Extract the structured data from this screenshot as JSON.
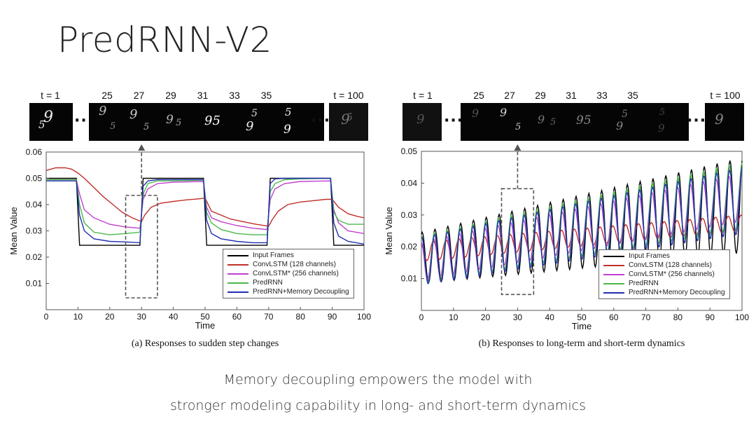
{
  "slide": {
    "title": "PredRNN-V2",
    "footer_line1": "Memory decoupling empowers the model with",
    "footer_line2": "stronger modeling capability in long- and short-term dynamics"
  },
  "colors": {
    "input_frames": "#000000",
    "convlstm": "#c0302a",
    "convlstm_star": "#c040d0",
    "predrnn": "#4ab84a",
    "predrnn_md": "#2030b0"
  },
  "frames_a": {
    "first_label": "t = 1",
    "last_label": "t = 100",
    "labels": [
      "25",
      "27",
      "29",
      "31",
      "33",
      "35"
    ],
    "dots": "···"
  },
  "frames_b": {
    "first_label": "t = 1",
    "last_label": "t = 100",
    "labels": [
      "25",
      "27",
      "29",
      "31",
      "33",
      "35"
    ],
    "dots": "···"
  },
  "chart_data": [
    {
      "type": "line",
      "caption": "(a) Responses to sudden step changes",
      "xlabel": "Time",
      "ylabel": "Mean Value",
      "xlim": [
        0,
        100
      ],
      "ylim": [
        0,
        0.06
      ],
      "xticks": [
        0,
        10,
        20,
        30,
        40,
        50,
        60,
        70,
        80,
        90,
        100
      ],
      "yticks": [
        0.01,
        0.02,
        0.03,
        0.04,
        0.05,
        0.06
      ],
      "ytick_labels": [
        "0.01",
        "0.02",
        "0.03",
        "0.04",
        "0.05",
        "0.06"
      ],
      "grid": false,
      "legend_position": "bottom-right",
      "highlight_range": [
        25,
        35
      ],
      "series": [
        {
          "name": "Input Frames",
          "key": "input_frames",
          "x": [
            0,
            9.5,
            10.5,
            29.5,
            30.5,
            49.5,
            50.5,
            69.5,
            70.5,
            89.5,
            90.5,
            100
          ],
          "y": [
            0.05,
            0.05,
            0.0245,
            0.0245,
            0.05,
            0.05,
            0.0245,
            0.0245,
            0.05,
            0.05,
            0.0245,
            0.0245
          ]
        },
        {
          "name": "ConvLSTM (128 channels)",
          "key": "convlstm",
          "x": [
            0,
            3,
            6,
            8,
            10,
            12,
            15,
            18,
            21,
            24,
            27,
            30,
            31,
            33,
            36,
            40,
            44,
            48,
            50,
            52,
            55,
            58,
            62,
            66,
            70,
            71,
            73,
            76,
            80,
            84,
            88,
            90,
            92,
            95,
            98,
            100
          ],
          "y": [
            0.053,
            0.054,
            0.054,
            0.0535,
            0.052,
            0.05,
            0.0465,
            0.043,
            0.04,
            0.037,
            0.035,
            0.0335,
            0.036,
            0.039,
            0.0405,
            0.0412,
            0.0418,
            0.0422,
            0.0425,
            0.0375,
            0.036,
            0.0345,
            0.0335,
            0.0325,
            0.0318,
            0.034,
            0.0375,
            0.04,
            0.041,
            0.0415,
            0.042,
            0.042,
            0.039,
            0.0365,
            0.0355,
            0.035
          ]
        },
        {
          "name": "ConvLSTM* (256 channels)",
          "key": "convlstm_star",
          "x": [
            0,
            9.5,
            10.5,
            12,
            15,
            20,
            25,
            29.5,
            30.5,
            32,
            35,
            40,
            49.5,
            50.5,
            52,
            55,
            60,
            65,
            69.5,
            70.5,
            72,
            75,
            80,
            89.5,
            90.5,
            92,
            95,
            100
          ],
          "y": [
            0.0495,
            0.0495,
            0.044,
            0.038,
            0.035,
            0.0325,
            0.0315,
            0.031,
            0.042,
            0.046,
            0.048,
            0.0485,
            0.0488,
            0.039,
            0.035,
            0.0335,
            0.032,
            0.031,
            0.0305,
            0.042,
            0.046,
            0.048,
            0.0488,
            0.049,
            0.038,
            0.033,
            0.03,
            0.029
          ]
        },
        {
          "name": "PredRNN",
          "key": "predrnn",
          "x": [
            0,
            9.5,
            10.5,
            12,
            15,
            20,
            25,
            29.5,
            30.5,
            32,
            35,
            40,
            49.5,
            50.5,
            52,
            55,
            60,
            65,
            69.5,
            70.5,
            72,
            75,
            80,
            89.5,
            90.5,
            92,
            95,
            100
          ],
          "y": [
            0.0495,
            0.0495,
            0.04,
            0.033,
            0.0295,
            0.0285,
            0.029,
            0.0295,
            0.044,
            0.048,
            0.049,
            0.049,
            0.0493,
            0.037,
            0.033,
            0.0305,
            0.029,
            0.0285,
            0.0285,
            0.045,
            0.048,
            0.0495,
            0.0498,
            0.05,
            0.037,
            0.034,
            0.0325,
            0.0325
          ]
        },
        {
          "name": "PredRNN+Memory Decoupling",
          "key": "predrnn_md",
          "x": [
            0,
            9.5,
            10.5,
            12,
            15,
            20,
            25,
            29.5,
            30.5,
            32,
            35,
            40,
            49.5,
            50.5,
            52,
            55,
            60,
            65,
            69.5,
            70.5,
            72,
            75,
            80,
            89.5,
            90.5,
            92,
            95,
            100
          ],
          "y": [
            0.049,
            0.049,
            0.036,
            0.03,
            0.027,
            0.026,
            0.0258,
            0.0255,
            0.047,
            0.049,
            0.0495,
            0.0495,
            0.0495,
            0.034,
            0.029,
            0.027,
            0.026,
            0.0255,
            0.0255,
            0.048,
            0.0498,
            0.05,
            0.05,
            0.05,
            0.033,
            0.028,
            0.026,
            0.025
          ]
        }
      ]
    },
    {
      "type": "line",
      "caption": "(b) Responses to long-term and short-term dynamics",
      "xlabel": "Time",
      "ylabel": "Mean Value",
      "xlim": [
        0,
        100
      ],
      "ylim": [
        0,
        0.05
      ],
      "xticks": [
        0,
        10,
        20,
        30,
        40,
        50,
        60,
        70,
        80,
        90,
        100
      ],
      "yticks": [
        0.01,
        0.02,
        0.03,
        0.04,
        0.05
      ],
      "ytick_labels": [
        "0.01",
        "0.02",
        "0.03",
        "0.04",
        "0.05"
      ],
      "grid": false,
      "legend_position": "bottom-right",
      "highlight_range": [
        25,
        35
      ],
      "series": [
        {
          "name": "Input Frames",
          "key": "input_frames",
          "oscillation": {
            "period": 4,
            "start": 0,
            "end": 100,
            "center_start": 0.0165,
            "center_end": 0.033,
            "amp_start": 0.008,
            "amp_end": 0.015,
            "phase": 1.2
          }
        },
        {
          "name": "ConvLSTM (128 channels)",
          "key": "convlstm",
          "oscillation": {
            "period": 4,
            "start": 0,
            "end": 100,
            "center_start": 0.0185,
            "center_end": 0.0275,
            "amp_start": 0.003,
            "amp_end": 0.0025,
            "phase": 2.0
          }
        },
        {
          "name": "ConvLSTM* (256 channels)",
          "key": "convlstm_star",
          "oscillation": {
            "period": 4,
            "start": 0,
            "end": 100,
            "center_start": 0.0155,
            "center_end": 0.0355,
            "amp_start": 0.006,
            "amp_end": 0.0075,
            "phase": 1.7
          }
        },
        {
          "name": "PredRNN",
          "key": "predrnn",
          "oscillation": {
            "period": 4,
            "start": 0,
            "end": 100,
            "center_start": 0.016,
            "center_end": 0.036,
            "amp_start": 0.0075,
            "amp_end": 0.0105,
            "phase": 1.5
          }
        },
        {
          "name": "PredRNN+Memory Decoupling",
          "key": "predrnn_md",
          "oscillation": {
            "period": 4,
            "start": 0,
            "end": 100,
            "center_start": 0.0155,
            "center_end": 0.0345,
            "amp_start": 0.0075,
            "amp_end": 0.0105,
            "phase": 1.4
          }
        }
      ]
    }
  ]
}
